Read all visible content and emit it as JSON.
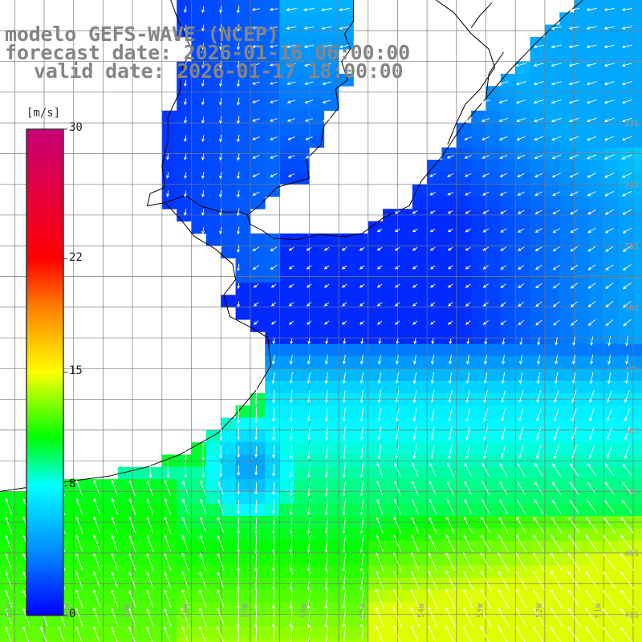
{
  "title": {
    "model": "modelo GEFS-WAVE (NCEP)",
    "forecast": "forecast date: 2026-01-16 06:00:00",
    "valid": "valid date: 2026-01-17 18:00:00"
  },
  "colorbar": {
    "unit": "[m/s]",
    "ticks": [
      {
        "label": "30",
        "value": 30
      },
      {
        "label": "22",
        "value": 22
      },
      {
        "label": "15",
        "value": 15
      },
      {
        "label": "8",
        "value": 8
      },
      {
        "label": "0",
        "value": 0
      }
    ],
    "stops": [
      "#0000ff",
      "#00ffff",
      "#00ff00",
      "#ffff00",
      "#ff8000",
      "#ff0000",
      "#c80078"
    ]
  },
  "lat_labels": [
    {
      "label": "33S",
      "lat": -33
    },
    {
      "label": "34S",
      "lat": -34
    },
    {
      "label": "35S",
      "lat": -35
    },
    {
      "label": "36S",
      "lat": -36
    },
    {
      "label": "37S",
      "lat": -37
    },
    {
      "label": "38S",
      "lat": -38
    },
    {
      "label": "39S",
      "lat": -39
    },
    {
      "label": "40S",
      "lat": -40
    },
    {
      "label": "41S",
      "lat": -41
    }
  ],
  "lon_labels": [
    {
      "label": "61W",
      "lon": -61
    },
    {
      "label": "60W",
      "lon": -60
    },
    {
      "label": "59W",
      "lon": -59
    },
    {
      "label": "58W",
      "lon": -58
    },
    {
      "label": "57W",
      "lon": -57
    },
    {
      "label": "56W",
      "lon": -56
    },
    {
      "label": "55W",
      "lon": -55
    },
    {
      "label": "54W",
      "lon": -54
    },
    {
      "label": "53W",
      "lon": -53
    },
    {
      "label": "52W",
      "lon": -52
    },
    {
      "label": "51W",
      "lon": -51
    }
  ],
  "map_extent": {
    "lon_min": -61.25,
    "lon_max": -50.35,
    "lat_min": -41.45,
    "lat_max": -31.0
  }
}
